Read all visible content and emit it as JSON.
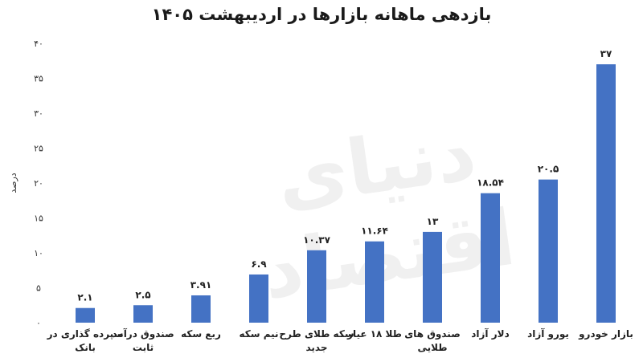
{
  "chart_data": {
    "type": "bar",
    "title": "بازدهی ماهانه بازارها در اردیبهشت ۱۴۰۵",
    "ylabel": "درصد",
    "xlabel": "",
    "ylim": [
      0,
      40
    ],
    "yticks": [
      0,
      5,
      10,
      15,
      20,
      25,
      30,
      35,
      40
    ],
    "ytick_labels": [
      "۰",
      "۵",
      "۱۰",
      "۱۵",
      "۲۰",
      "۲۵",
      "۳۰",
      "۳۵",
      "۴۰"
    ],
    "categories": [
      [
        "سپرده گذاری در",
        "بانک"
      ],
      [
        "صندوق درآمد",
        "ثابت"
      ],
      [
        "ربع سکه"
      ],
      [
        "نیم سکه"
      ],
      [
        "سکه طلای طرح",
        "جدید"
      ],
      [
        "طلا ۱۸ عیار"
      ],
      [
        "صندوق های",
        "طلایی"
      ],
      [
        "دلار آزاد"
      ],
      [
        "یورو آزاد"
      ],
      [
        "بازار خودرو"
      ]
    ],
    "values": [
      2.1,
      2.5,
      3.91,
      6.9,
      10.37,
      11.64,
      13,
      18.54,
      20.5,
      37
    ],
    "value_labels": [
      "۲.۱",
      "۲.۵",
      "۳.۹۱",
      "۶.۹",
      "۱۰.۳۷",
      "۱۱.۶۴",
      "۱۳",
      "۱۸.۵۴",
      "۲۰.۵",
      "۳۷"
    ],
    "bar_color": "#4472c4",
    "grid": false,
    "legend": "none"
  },
  "watermark": "دنیای اقتصاد"
}
